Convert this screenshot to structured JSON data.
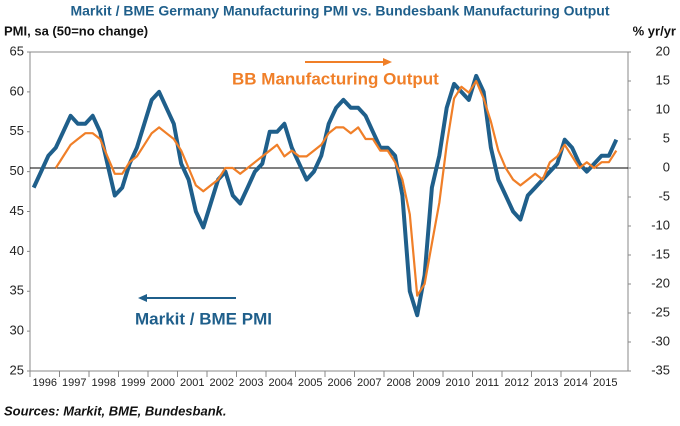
{
  "chart_data": {
    "type": "line",
    "title": "Markit / BME Germany Manufacturing PMI vs. Bundesbank Manufacturing Output",
    "ylabel": "PMI, sa (50=no change)",
    "y2label": "% yr/yr",
    "source": "Sources: Markit, BME, Bundesbank.",
    "annotations": [
      "BB Manufacturing Output",
      "Markit / BME PMI"
    ],
    "x": [
      1996.125,
      1996.375,
      1996.625,
      1996.875,
      1997.125,
      1997.375,
      1997.625,
      1997.875,
      1998.125,
      1998.375,
      1998.625,
      1998.875,
      1999.125,
      1999.375,
      1999.625,
      1999.875,
      2000.125,
      2000.375,
      2000.625,
      2000.875,
      2001.125,
      2001.375,
      2001.625,
      2001.875,
      2002.125,
      2002.375,
      2002.625,
      2002.875,
      2003.125,
      2003.375,
      2003.625,
      2003.875,
      2004.125,
      2004.375,
      2004.625,
      2004.875,
      2005.125,
      2005.375,
      2005.625,
      2005.875,
      2006.125,
      2006.375,
      2006.625,
      2006.875,
      2007.125,
      2007.375,
      2007.625,
      2007.875,
      2008.125,
      2008.375,
      2008.625,
      2008.875,
      2009.125,
      2009.375,
      2009.625,
      2009.875,
      2010.125,
      2010.375,
      2010.625,
      2010.875,
      2011.125,
      2011.375,
      2011.625,
      2011.875,
      2012.125,
      2012.375,
      2012.625,
      2012.875,
      2013.125,
      2013.375,
      2013.625,
      2013.875,
      2014.125,
      2014.375,
      2014.625,
      2014.875,
      2015.125,
      2015.375,
      2015.625,
      2015.875
    ],
    "series": [
      {
        "name": "Markit / BME PMI",
        "color": "#1f5f8b",
        "axis": "y",
        "values": [
          48,
          50,
          52,
          53,
          55,
          57,
          56,
          56,
          57,
          55,
          51,
          47,
          48,
          51,
          53,
          56,
          59,
          60,
          58,
          56,
          51,
          49,
          45,
          43,
          46,
          49,
          50,
          47,
          46,
          48,
          50,
          51,
          55,
          55,
          56,
          53,
          51,
          49,
          50,
          52,
          56,
          58,
          59,
          58,
          58,
          57,
          55,
          53,
          53,
          52,
          47,
          35,
          32,
          37,
          48,
          52,
          58,
          61,
          60,
          59,
          62,
          60,
          53,
          49,
          47,
          45,
          44,
          47,
          48,
          49,
          50,
          51,
          54,
          53,
          51,
          50,
          51,
          52,
          52,
          54
        ]
      },
      {
        "name": "BB Manufacturing Output",
        "color": "#f07f28",
        "axis": "y2",
        "values": [
          null,
          null,
          null,
          0,
          2,
          4,
          5,
          6,
          6,
          5,
          2,
          -1,
          -1,
          1,
          2,
          4,
          6,
          7,
          6,
          5,
          3,
          0,
          -3,
          -4,
          -3,
          -2,
          0,
          0,
          -1,
          0,
          1,
          2,
          3,
          4,
          2,
          3,
          2,
          2,
          3,
          4,
          6,
          7,
          7,
          6,
          7,
          5,
          5,
          3,
          3,
          1,
          -2,
          -8,
          -22,
          -20,
          -13,
          -6,
          4,
          12,
          14,
          13,
          15,
          12,
          8,
          3,
          0,
          -2,
          -3,
          -2,
          -1,
          -2,
          1,
          2,
          4,
          2,
          0,
          1,
          0,
          1,
          1,
          3
        ]
      }
    ],
    "xlim": [
      1996,
      2016
    ],
    "xticks": [
      1996,
      1997,
      1998,
      1999,
      2000,
      2001,
      2002,
      2003,
      2004,
      2005,
      2006,
      2007,
      2008,
      2009,
      2010,
      2011,
      2012,
      2013,
      2014,
      2015
    ],
    "ylim": [
      25,
      65
    ],
    "yticks": [
      25,
      30,
      35,
      40,
      45,
      50,
      55,
      60,
      65
    ],
    "y2lim": [
      -35,
      20
    ],
    "y2ticks": [
      -35,
      -30,
      -25,
      -20,
      -15,
      -10,
      -5,
      0,
      5,
      10,
      15,
      20
    ]
  }
}
